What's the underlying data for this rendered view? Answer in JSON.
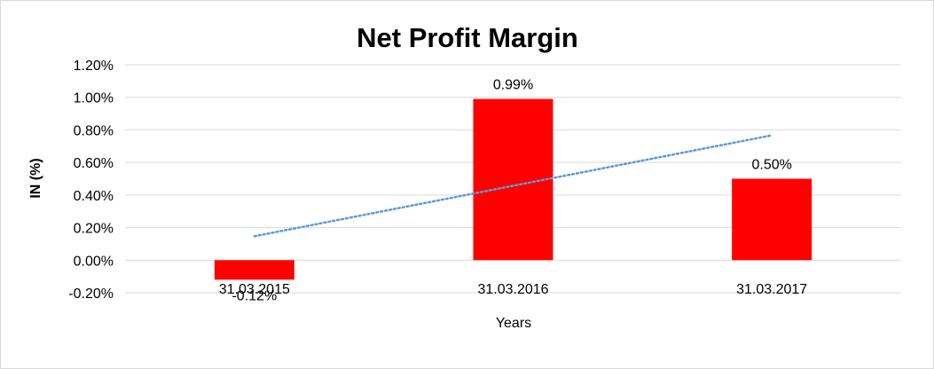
{
  "chart_data": {
    "type": "bar",
    "title": "Net Profit Margin",
    "xlabel": "Years",
    "ylabel": "IN (%)",
    "categories": [
      "31.03.2015",
      "31.03.2016",
      "31.03.2017"
    ],
    "series": [
      {
        "values": [
          -0.12,
          0.99,
          0.5
        ],
        "data_labels": [
          "-0.12%",
          "0.99%",
          "0.50%"
        ],
        "color": "#ff0000"
      }
    ],
    "ylim": [
      -0.2,
      1.2
    ],
    "yticks": [
      -0.2,
      0.0,
      0.2,
      0.4,
      0.6,
      0.8,
      1.0,
      1.2
    ],
    "ytick_labels": [
      "-0.20%",
      "0.00%",
      "0.20%",
      "0.40%",
      "0.60%",
      "0.80%",
      "1.00%",
      "1.20%"
    ],
    "grid": true,
    "gridline_color": "#d9d9d9",
    "trendline": {
      "type": "linear",
      "style": "dotted",
      "color": "#5b9bd5"
    }
  }
}
